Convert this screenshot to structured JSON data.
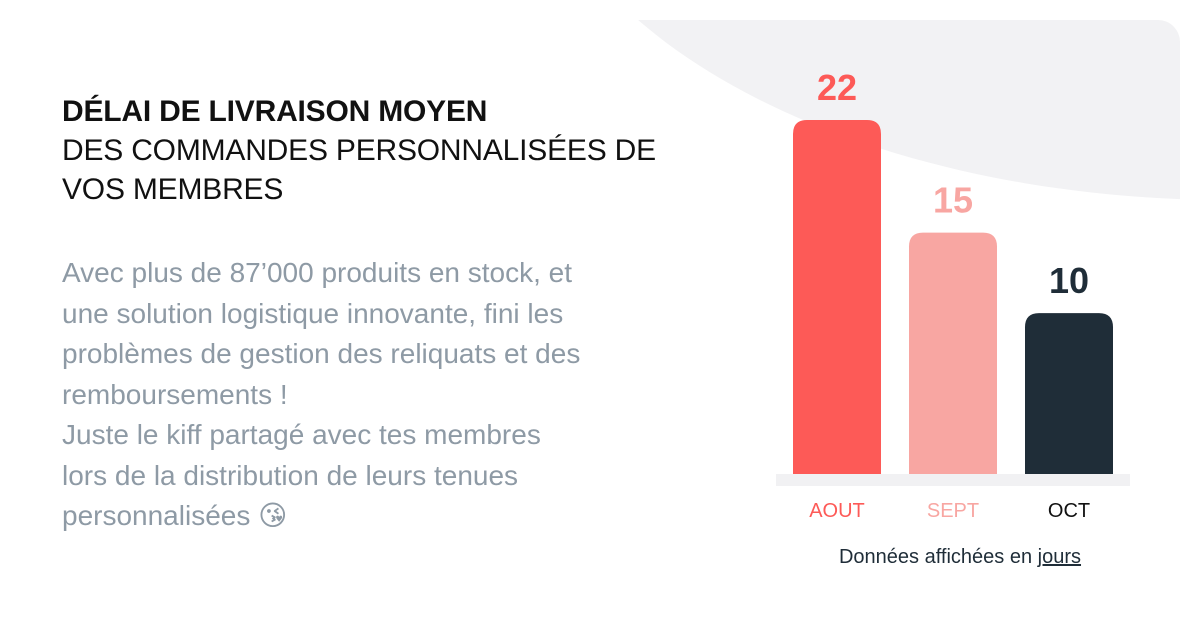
{
  "headline": {
    "bold_line": "DÉLAI DE LIVRAISON MOYEN",
    "rest_line1": "DES COMMANDES PERSONNALISÉES DE",
    "rest_line2": "VOS MEMBRES"
  },
  "description": {
    "lines": [
      "Avec plus de 87’000 produits en stock, et",
      "une solution logistique innovante, fini les",
      "problèmes de gestion des reliquats et des",
      "remboursements !",
      "Juste le kiff partagé avec tes membres",
      "lors de la distribution de leurs tenues",
      "personnalisées 😘"
    ]
  },
  "footnote": {
    "prefix": "Données affichées en",
    "unit": "jours"
  },
  "colors": {
    "coral": "#fd5a57",
    "pink": "#f8a6a2",
    "navy": "#1f2d38",
    "baseline": "#f1f1f3"
  },
  "chart_data": {
    "type": "bar",
    "categories": [
      "AOUT",
      "SEPT",
      "OCT"
    ],
    "values": [
      22,
      15,
      10
    ],
    "value_labels": [
      "22",
      "15",
      "10"
    ],
    "bar_colors": [
      "#fd5a57",
      "#f8a6a2",
      "#1f2d38"
    ],
    "label_colors": [
      "#fd5a57",
      "#f8a6a2",
      "#1f2d38"
    ],
    "category_colors": [
      "#fd5a57",
      "#f8a6a2",
      "#111111"
    ],
    "ylim": [
      0,
      22
    ],
    "grid": false,
    "title": "",
    "xlabel": "",
    "ylabel": ""
  }
}
